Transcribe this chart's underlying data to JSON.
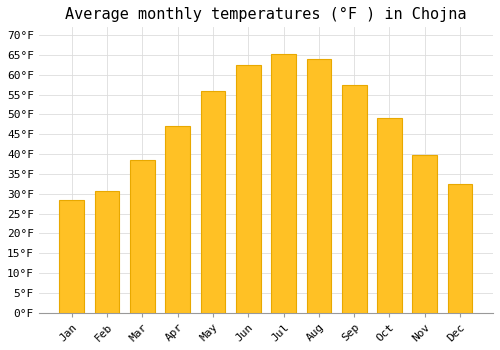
{
  "title": "Average monthly temperatures (°F ) in Chojna",
  "months": [
    "Jan",
    "Feb",
    "Mar",
    "Apr",
    "May",
    "Jun",
    "Jul",
    "Aug",
    "Sep",
    "Oct",
    "Nov",
    "Dec"
  ],
  "values": [
    28.5,
    30.8,
    38.5,
    47.0,
    56.0,
    62.5,
    65.2,
    64.0,
    57.5,
    49.2,
    39.8,
    32.5
  ],
  "bar_color": "#FFC125",
  "bar_edge_color": "#E8A800",
  "ylim": [
    0,
    72
  ],
  "yticks": [
    0,
    5,
    10,
    15,
    20,
    25,
    30,
    35,
    40,
    45,
    50,
    55,
    60,
    65,
    70
  ],
  "background_color": "#ffffff",
  "grid_color": "#dddddd",
  "title_fontsize": 11,
  "tick_fontsize": 8,
  "font_family": "monospace"
}
